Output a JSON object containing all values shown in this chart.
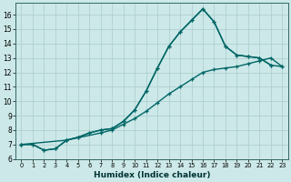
{
  "xlabel": "Humidex (Indice chaleur)",
  "bg_color": "#cce8e8",
  "grid_color": "#aacccc",
  "line_color": "#006666",
  "xlim": [
    -0.5,
    23.5
  ],
  "ylim": [
    6.0,
    16.8
  ],
  "yticks": [
    6,
    7,
    8,
    9,
    10,
    11,
    12,
    13,
    14,
    15,
    16
  ],
  "xticks": [
    0,
    1,
    2,
    3,
    4,
    5,
    6,
    7,
    8,
    9,
    10,
    11,
    12,
    13,
    14,
    15,
    16,
    17,
    18,
    19,
    20,
    21,
    22,
    23
  ],
  "line1_x": [
    0,
    1,
    2,
    3,
    4,
    5,
    6,
    7,
    8,
    9,
    10,
    11,
    12,
    13,
    14,
    15,
    16,
    17,
    18,
    19,
    20,
    21,
    22
  ],
  "line1_y": [
    7.0,
    7.0,
    6.6,
    6.7,
    7.3,
    7.5,
    7.8,
    8.0,
    8.1,
    8.6,
    9.4,
    10.7,
    12.3,
    13.8,
    14.8,
    15.6,
    16.4,
    15.5,
    13.8,
    13.2,
    13.1,
    13.0,
    12.5
  ],
  "line2_x": [
    0,
    1,
    2,
    3,
    4,
    5,
    6,
    7,
    8,
    9,
    10,
    11,
    12,
    13,
    14,
    15,
    16,
    17,
    18,
    19,
    20,
    21,
    22,
    23
  ],
  "line2_y": [
    7.0,
    7.0,
    6.6,
    6.7,
    7.3,
    7.5,
    7.8,
    8.0,
    8.1,
    8.6,
    9.4,
    10.7,
    12.3,
    13.8,
    14.8,
    15.6,
    16.4,
    15.5,
    13.8,
    13.2,
    13.1,
    13.0,
    12.5,
    12.4
  ],
  "line3_x": [
    0,
    4,
    7,
    8,
    9,
    10,
    11,
    12,
    13,
    14,
    15,
    16,
    17,
    18,
    19,
    20,
    21,
    22,
    23
  ],
  "line3_y": [
    7.0,
    7.3,
    7.8,
    8.0,
    8.4,
    8.8,
    9.3,
    9.9,
    10.5,
    11.0,
    11.5,
    12.0,
    12.2,
    12.3,
    12.4,
    12.6,
    12.8,
    13.0,
    12.4
  ]
}
